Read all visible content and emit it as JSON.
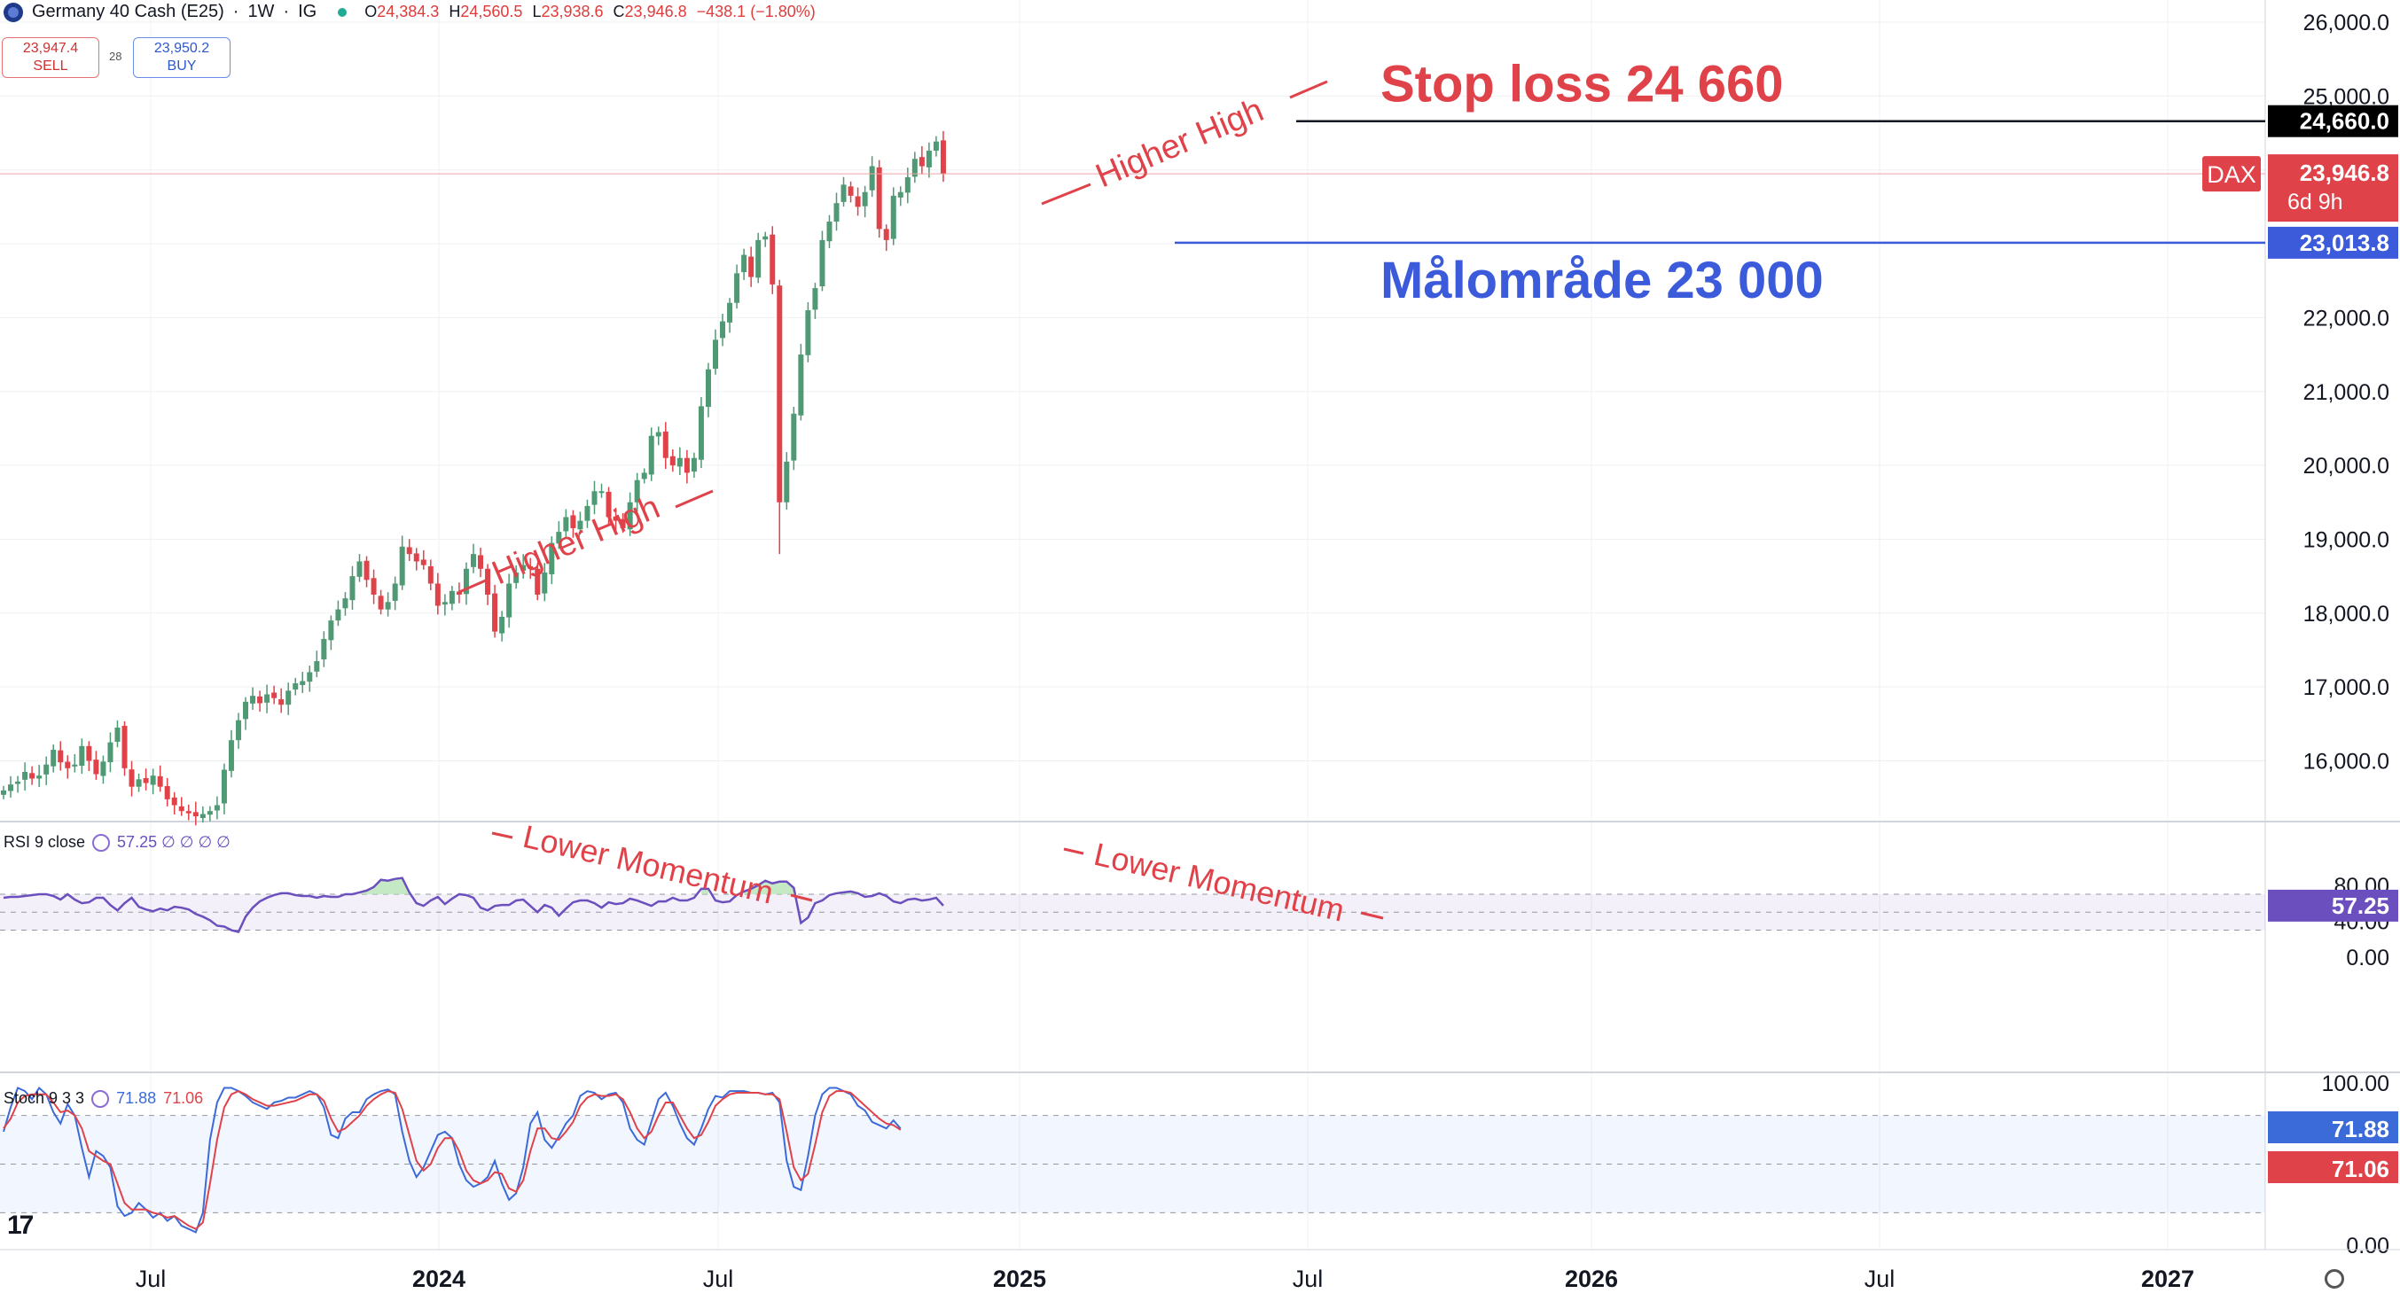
{
  "header": {
    "symbol": "Germany 40 Cash (E25)",
    "timeframe": "1W",
    "broker": "IG",
    "ohlc": {
      "O": "24,384.3",
      "H": "24,560.5",
      "L": "23,938.6",
      "C": "23,946.8",
      "change": "−438.1 (−1.80%)"
    },
    "sell_price": "23,947.4",
    "sell_label": "SELL",
    "buy_price": "23,950.2",
    "buy_label": "BUY",
    "spread": "28"
  },
  "colors": {
    "up": "#4f9a74",
    "down": "#e0424a",
    "stop": "#131722",
    "target": "#3b5bdb",
    "annotation": "#e0424a",
    "rsi": "#6c4fbf",
    "stoch_k": "#3b6bd9",
    "stoch_d": "#e0424a"
  },
  "chart_data": [
    {
      "type": "candlestick",
      "title": "Germany 40 Cash (E25) · 1W · IG",
      "x_ticks": [
        "Jul",
        "2024",
        "Jul",
        "2025",
        "Jul",
        "2026",
        "Jul",
        "2027"
      ],
      "ylim": [
        15250,
        26200
      ],
      "y_ticks": [
        "16,000.0",
        "17,000.0",
        "18,000.0",
        "19,000.0",
        "20,000.0",
        "21,000.0",
        "22,000.0",
        "23,000.0",
        "25,000.0",
        "26,000.0"
      ],
      "closes": [
        15600,
        15680,
        15720,
        15850,
        15760,
        15800,
        15950,
        16150,
        15980,
        15900,
        15950,
        16200,
        16000,
        15820,
        15990,
        16250,
        16450,
        15900,
        15650,
        15750,
        15700,
        15800,
        15650,
        15480,
        15400,
        15320,
        15290,
        15250,
        15280,
        15320,
        15400,
        15880,
        16280,
        16550,
        16800,
        16880,
        16780,
        16900,
        16850,
        16760,
        16950,
        17050,
        17080,
        17200,
        17350,
        17650,
        17900,
        18050,
        18200,
        18500,
        18700,
        18450,
        18250,
        18050,
        18150,
        18400,
        18900,
        18800,
        18700,
        18650,
        18400,
        18100,
        18150,
        18300,
        18250,
        18600,
        18800,
        18600,
        18250,
        17750,
        17950,
        18400,
        18550,
        18650,
        18600,
        18250,
        18550,
        18950,
        19100,
        19300,
        19150,
        19250,
        19450,
        19650,
        19650,
        19300,
        19250,
        19150,
        19500,
        19800,
        19900,
        20400,
        20450,
        20100,
        20000,
        20100,
        19900,
        20100,
        20800,
        21300,
        21700,
        21950,
        22200,
        22600,
        22850,
        22550,
        23050,
        23100,
        22450,
        19500,
        20050,
        20700,
        21500,
        22100,
        22400,
        23050,
        23300,
        23550,
        23800,
        23650,
        23500,
        23700,
        24050,
        23200,
        23050,
        23650,
        23700,
        23900,
        24150,
        24050,
        24260,
        24384,
        23946.8
      ],
      "stop_loss": {
        "value": 24660,
        "axis_label": "24,660.0",
        "label": "Stop loss 24 660"
      },
      "target": {
        "value": 23013.8,
        "axis_label": "23,013.8",
        "label": "Målområde 23 000"
      },
      "current": {
        "value": 23946.8,
        "axis_label": "23,946.8",
        "tag": "DAX",
        "countdown": "6d 9h"
      },
      "annotations": [
        "Higher High",
        "Higher High"
      ]
    },
    {
      "type": "line",
      "name": "RSI 9 close",
      "legend_text": "57.25 ∅ ∅ ∅ ∅",
      "ylim": [
        0,
        100
      ],
      "y_ticks": [
        "80.00",
        "40.00",
        "0.00"
      ],
      "bands": [
        30,
        50,
        70
      ],
      "last_value": "57.25",
      "values": [
        66,
        67,
        67,
        68,
        69,
        70,
        70,
        68,
        64,
        70,
        64,
        60,
        61,
        66,
        66,
        58,
        52,
        60,
        66,
        56,
        53,
        51,
        54,
        52,
        56,
        55,
        53,
        48,
        45,
        41,
        35,
        34,
        30,
        28,
        45,
        55,
        62,
        66,
        69,
        71,
        71,
        69,
        68,
        68,
        66,
        68,
        67,
        67,
        70,
        70,
        72,
        74,
        78,
        86,
        85,
        87,
        88,
        72,
        60,
        57,
        63,
        67,
        59,
        65,
        70,
        69,
        66,
        55,
        52,
        57,
        58,
        58,
        63,
        64,
        57,
        50,
        58,
        55,
        46,
        54,
        61,
        63,
        63,
        60,
        55,
        61,
        59,
        60,
        65,
        63,
        60,
        57,
        62,
        62,
        66,
        63,
        63,
        66,
        76,
        76,
        63,
        61,
        62,
        69,
        73,
        76,
        80,
        85,
        82,
        84,
        84,
        77,
        38,
        44,
        60,
        63,
        69,
        71,
        72,
        73,
        71,
        67,
        68,
        71,
        68,
        62,
        60,
        64,
        65,
        63,
        64,
        66,
        57.25
      ],
      "annotations": [
        "Lower Momentum",
        "Lower Momentum"
      ]
    },
    {
      "type": "line",
      "name": "Stoch 9 3 3",
      "ylim": [
        0,
        100
      ],
      "y_ticks": [
        "100.00",
        "0.00"
      ],
      "bands": [
        20,
        50,
        80
      ],
      "series": [
        {
          "name": "%K",
          "last_value": "71.88",
          "values": [
            70,
            85,
            97,
            95,
            90,
            97,
            93,
            82,
            75,
            87,
            80,
            60,
            42,
            58,
            55,
            48,
            24,
            18,
            20,
            26,
            22,
            17,
            20,
            15,
            18,
            12,
            10,
            8,
            20,
            65,
            88,
            97,
            97,
            95,
            92,
            88,
            86,
            84,
            88,
            89,
            91,
            91,
            93,
            95,
            93,
            85,
            68,
            66,
            78,
            82,
            82,
            90,
            93,
            95,
            96,
            93,
            70,
            52,
            42,
            48,
            58,
            68,
            70,
            66,
            50,
            40,
            36,
            38,
            42,
            52,
            38,
            28,
            32,
            48,
            75,
            82,
            65,
            60,
            67,
            75,
            80,
            92,
            95,
            94,
            90,
            93,
            94,
            88,
            72,
            65,
            62,
            76,
            90,
            94,
            86,
            75,
            66,
            62,
            72,
            84,
            92,
            91,
            95,
            95,
            95,
            94,
            94,
            93,
            94,
            88,
            52,
            36,
            34,
            55,
            80,
            93,
            97,
            97,
            95,
            93,
            86,
            83,
            76,
            74,
            72,
            77,
            71.88
          ]
        },
        {
          "name": "%D",
          "last_value": "71.06",
          "values": [
            72,
            78,
            88,
            92,
            93,
            93,
            93,
            88,
            82,
            83,
            80,
            72,
            58,
            55,
            52,
            50,
            38,
            26,
            22,
            22,
            22,
            20,
            19,
            17,
            18,
            15,
            12,
            10,
            14,
            38,
            65,
            85,
            93,
            95,
            93,
            90,
            88,
            86,
            86,
            87,
            88,
            89,
            91,
            93,
            93,
            89,
            78,
            70,
            72,
            76,
            80,
            86,
            90,
            93,
            95,
            94,
            84,
            68,
            52,
            46,
            50,
            60,
            66,
            66,
            58,
            46,
            40,
            38,
            40,
            45,
            44,
            35,
            33,
            40,
            58,
            72,
            72,
            66,
            65,
            70,
            76,
            86,
            91,
            93,
            92,
            92,
            93,
            90,
            82,
            72,
            66,
            70,
            80,
            88,
            88,
            80,
            72,
            66,
            68,
            76,
            86,
            90,
            93,
            94,
            94,
            94,
            94,
            93,
            93,
            90,
            70,
            48,
            40,
            44,
            62,
            82,
            92,
            95,
            95,
            94,
            90,
            86,
            82,
            78,
            75,
            74,
            71.06
          ]
        }
      ]
    }
  ]
}
